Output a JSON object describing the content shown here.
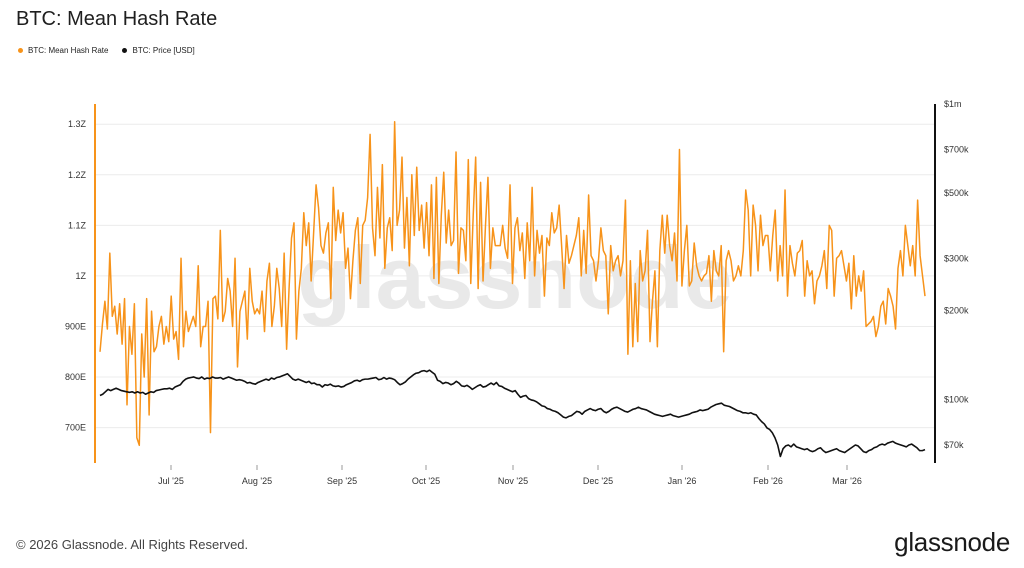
{
  "title": "BTC: Mean Hash Rate",
  "legend": [
    {
      "label": "BTC: Mean Hash Rate",
      "color": "#f7931a"
    },
    {
      "label": "BTC: Price [USD]",
      "color": "#111111"
    }
  ],
  "footer": "© 2026 Glassnode. All Rights Reserved.",
  "brand": "glassnode",
  "watermark": "glassnode",
  "chart_data": {
    "type": "line",
    "x_ticks": [
      "Jul '25",
      "Aug '25",
      "Sep '25",
      "Oct '25",
      "Nov '25",
      "Dec '25",
      "Jan '26",
      "Feb '26",
      "Mar '26"
    ],
    "y_left_ticks": [
      "1.3Z",
      "1.2Z",
      "1.1Z",
      "1Z",
      "900E",
      "800E",
      "700E"
    ],
    "y_left_range": [
      630,
      1340
    ],
    "y_left_tick_values": [
      1300,
      1200,
      1100,
      1000,
      900,
      800,
      700
    ],
    "y_right_ticks": [
      "$1m",
      "$700k",
      "$500k",
      "$300k",
      "$200k",
      "$100k",
      "$70k"
    ],
    "y_right_tick_values": [
      1000000,
      700000,
      500000,
      300000,
      200000,
      100000,
      70000
    ],
    "y_right_scale": "log",
    "grid": true,
    "legend_position": "top-left",
    "series": [
      {
        "name": "BTC: Mean Hash Rate",
        "axis": "left",
        "color": "#f7931a",
        "values": [
          850,
          905,
          950,
          895,
          1045,
          920,
          940,
          885,
          945,
          865,
          955,
          745,
          900,
          845,
          945,
          680,
          665,
          885,
          800,
          955,
          725,
          930,
          850,
          860,
          900,
          920,
          865,
          900,
          870,
          960,
          875,
          890,
          835,
          1035,
          860,
          930,
          890,
          905,
          920,
          900,
          1020,
          860,
          900,
          900,
          950,
          690,
          955,
          960,
          915,
          1090,
          910,
          930,
          995,
          970,
          900,
          1035,
          820,
          930,
          950,
          970,
          875,
          1015,
          950,
          925,
          935,
          925,
          970,
          890,
          990,
          1025,
          900,
          940,
          1015,
          975,
          900,
          1045,
          855,
          975,
          1075,
          1105,
          875,
          970,
          1015,
          1125,
          1060,
          1105,
          990,
          1085,
          1180,
          1135,
          1060,
          1045,
          1085,
          1105,
          955,
          1175,
          1070,
          1130,
          1085,
          1125,
          1015,
          1055,
          955,
          1030,
          1090,
          1115,
          985,
          1100,
          1110,
          1155,
          1280,
          1095,
          1040,
          1175,
          1075,
          1220,
          1015,
          1095,
          1115,
          1050,
          1305,
          1100,
          1130,
          1235,
          1055,
          1155,
          1020,
          1200,
          1080,
          1215,
          1090,
          1140,
          1055,
          1145,
          1040,
          1180,
          995,
          1195,
          985,
          1120,
          1205,
          1065,
          1130,
          1060,
          1070,
          1245,
          1005,
          1095,
          1090,
          1030,
          1230,
          985,
          1120,
          1235,
          975,
          1185,
          990,
          1100,
          1195,
          1015,
          1095,
          1060,
          1060,
          1060,
          1100,
          1055,
          1035,
          1180,
          985,
          1095,
          1115,
          1050,
          1085,
          995,
          1105,
          1030,
          1175,
          1000,
          1090,
          1045,
          1080,
          960,
          1075,
          1060,
          1125,
          1085,
          1095,
          1140,
          1060,
          975,
          1080,
          1025,
          1040,
          1060,
          1080,
          1115,
          1000,
          1090,
          1005,
          1160,
          1040,
          1030,
          990,
          1030,
          1095,
          1050,
          1040,
          925,
          1060,
          1010,
          1030,
          1040,
          1000,
          1030,
          1150,
          845,
          1030,
          860,
          985,
          870,
          1050,
          990,
          1010,
          1090,
          870,
          950,
          1010,
          860,
          1050,
          1120,
          1045,
          1120,
          1060,
          1030,
          1085,
          990,
          1250,
          980,
          1050,
          1100,
          980,
          990,
          1065,
          1020,
          1000,
          990,
          1000,
          1005,
          1040,
          950,
          1050,
          1010,
          1000,
          1060,
          850,
          1030,
          1050,
          1030,
          990,
          1000,
          1020,
          1000,
          1050,
          1170,
          1130,
          1000,
          1140,
          1100,
          1010,
          1120,
          1060,
          1080,
          1080,
          1010,
          1080,
          1130,
          990,
          1060,
          1000,
          1170,
          960,
          1060,
          1025,
          1000,
          1045,
          1050,
          1070,
          960,
          1030,
          1000,
          1010,
          945,
          990,
          1000,
          1020,
          1050,
          975,
          1100,
          1090,
          960,
          1035,
          1040,
          1050,
          1020,
          990,
          1025,
          935,
          1040,
          960,
          1000,
          970,
          1010,
          900,
          905,
          910,
          920,
          880,
          900,
          940,
          950,
          905,
          975,
          960,
          940,
          895,
          1015,
          1050,
          1000,
          1100,
          1060,
          1020,
          1060,
          1000,
          1150,
          1040,
          1000,
          960
        ]
      },
      {
        "name": "BTC: Price [USD]",
        "axis": "right",
        "color": "#111111",
        "values": [
          103000,
          104000,
          106000,
          108000,
          107000,
          108000,
          109000,
          108000,
          107000,
          106500,
          106000,
          105500,
          106000,
          105000,
          106000,
          105000,
          105500,
          104000,
          105000,
          106000,
          105500,
          107000,
          107500,
          108000,
          108500,
          108500,
          109000,
          108000,
          110000,
          111000,
          112000,
          115000,
          117000,
          118000,
          118500,
          119000,
          118000,
          117500,
          119000,
          117000,
          118000,
          117500,
          119000,
          118000,
          118000,
          118500,
          117000,
          118000,
          119000,
          118000,
          117000,
          116000,
          116500,
          116000,
          115000,
          113500,
          114000,
          113000,
          112500,
          114000,
          115000,
          116000,
          117000,
          116000,
          118000,
          117000,
          118500,
          119000,
          120000,
          121000,
          122000,
          119500,
          117000,
          116000,
          117000,
          116000,
          115000,
          114000,
          115000,
          113000,
          113500,
          112000,
          112000,
          110000,
          112000,
          111500,
          112500,
          111000,
          110500,
          111000,
          110000,
          110500,
          112000,
          113000,
          114000,
          115500,
          116000,
          115000,
          116500,
          117000,
          117000,
          117500,
          118000,
          118500,
          116500,
          117000,
          118500,
          117000,
          118000,
          117500,
          116500,
          114000,
          112000,
          113000,
          114500,
          117000,
          119000,
          121000,
          122500,
          123000,
          124500,
          125000,
          124000,
          125500,
          123500,
          121500,
          116000,
          115000,
          113000,
          114000,
          113500,
          112000,
          113000,
          115000,
          113500,
          111000,
          110500,
          111500,
          110000,
          108000,
          109500,
          111000,
          112000,
          110000,
          110500,
          112000,
          113500,
          112000,
          114000,
          111000,
          110500,
          109000,
          108000,
          107000,
          106000,
          107000,
          104000,
          101500,
          102500,
          103000,
          100500,
          99500,
          99000,
          98000,
          96500,
          95000,
          94500,
          93000,
          92500,
          91500,
          91000,
          90000,
          88500,
          87000,
          86500,
          87500,
          88000,
          89500,
          91000,
          90500,
          89000,
          91000,
          92000,
          93000,
          92000,
          91500,
          92500,
          93000,
          91000,
          90000,
          91000,
          92500,
          93500,
          94000,
          93000,
          92000,
          91000,
          90500,
          91500,
          92500,
          93000,
          94000,
          93000,
          92500,
          92000,
          91000,
          90000,
          89000,
          88500,
          88000,
          87500,
          88000,
          88500,
          89000,
          88000,
          87500,
          87000,
          87500,
          88000,
          88500,
          89000,
          90000,
          90500,
          91000,
          92000,
          91500,
          92000,
          92500,
          94000,
          95000,
          96000,
          96500,
          97000,
          95500,
          95000,
          94500,
          93500,
          92500,
          91500,
          91000,
          90000,
          90000,
          89500,
          90000,
          89000,
          88500,
          86000,
          84000,
          82500,
          80000,
          79000,
          77000,
          74000,
          70000,
          64000,
          68000,
          69500,
          70000,
          69000,
          70500,
          69000,
          68500,
          68000,
          67500,
          68000,
          67000,
          66500,
          67000,
          68000,
          68500,
          67000,
          66000,
          66500,
          67000,
          67500,
          68000,
          67000,
          66500,
          66000,
          67000,
          68000,
          69000,
          70000,
          69500,
          68000,
          66500,
          66000,
          67000,
          67500,
          68500,
          69000,
          70000,
          70500,
          70000,
          71000,
          71500,
          72000,
          71000,
          70500,
          70000,
          69500,
          69000,
          70000,
          70500,
          69500,
          68500,
          67000,
          67000,
          67500
        ]
      }
    ]
  }
}
